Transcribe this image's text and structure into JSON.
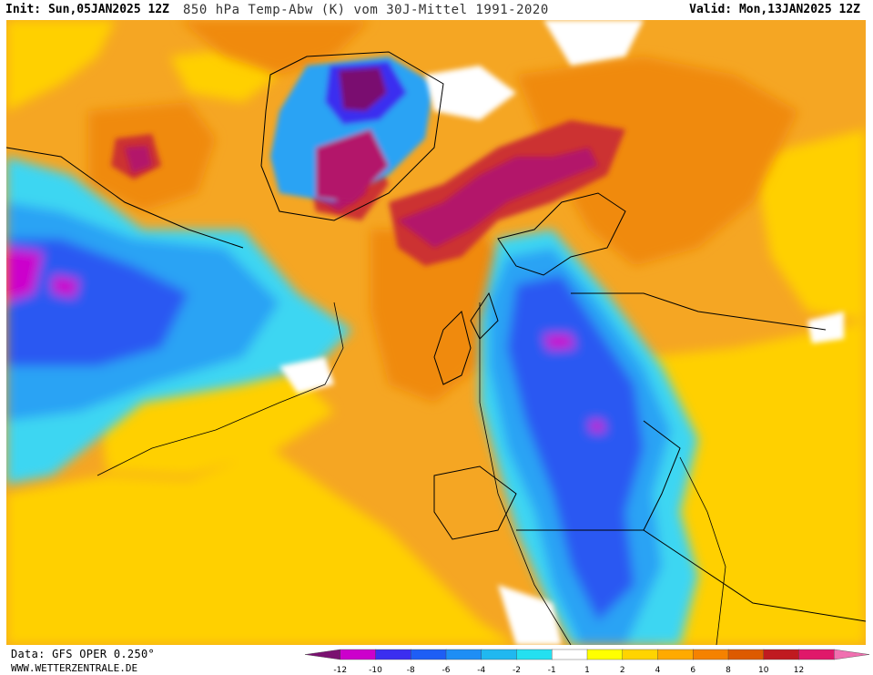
{
  "header": {
    "init": "Init: Sun,05JAN2025 12Z",
    "title": "850 hPa Temp-Abw (K) vom 30J-Mittel 1991-2020",
    "valid": "Valid: Mon,13JAN2025 12Z"
  },
  "footer": {
    "data_source": "Data: GFS OPER 0.250°",
    "website": "WWW.WETTERZENTRALE.DE"
  },
  "legend": {
    "labels": [
      "-12",
      "-10",
      "-8",
      "-6",
      "-4",
      "-2",
      "-1",
      "1",
      "2",
      "4",
      "6",
      "8",
      "10",
      "12"
    ],
    "colors": [
      "#7a1170",
      "#cc00cc",
      "#3b2ef0",
      "#1e5ef5",
      "#1e8ef5",
      "#20b8f0",
      "#24e0f0",
      "#ffffff",
      "#ffff00",
      "#ffd400",
      "#ffaa00",
      "#f58200",
      "#dd5a00",
      "#c01a20",
      "#e0186a",
      "#f070b0"
    ]
  },
  "colors": {
    "orange": "#f5a623",
    "yellow": "#ffd200",
    "dark_red": "#b5143a",
    "magenta": "#9c0a6a",
    "blue": "#2a58f2",
    "light_blue": "#2aa3f4",
    "cyan": "#3ed6f2"
  }
}
